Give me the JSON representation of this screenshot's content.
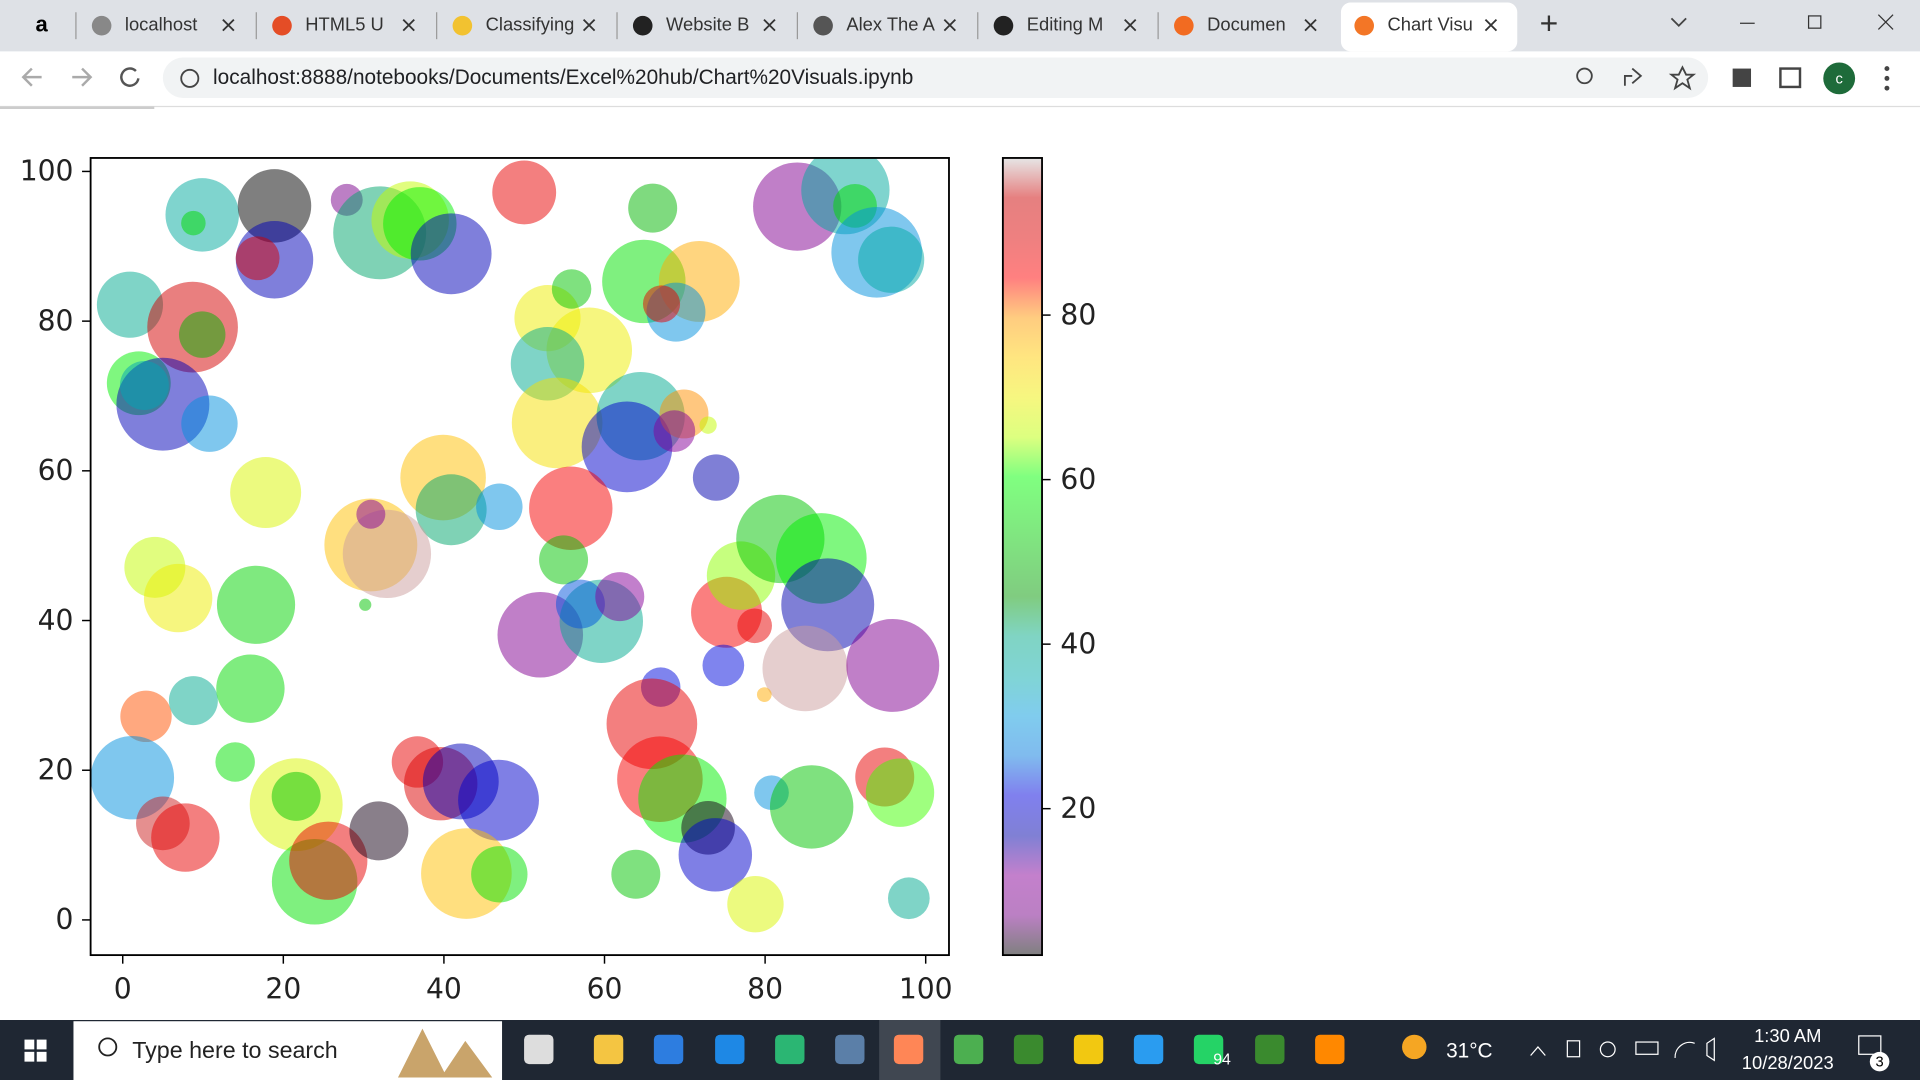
{
  "browser": {
    "tabs": [
      {
        "title": "localhost"
      },
      {
        "title": "HTML5 U"
      },
      {
        "title": "Classifying"
      },
      {
        "title": "Website B"
      },
      {
        "title": "Alex The A"
      },
      {
        "title": "Editing M"
      },
      {
        "title": "Documen"
      },
      {
        "title": "Chart Visu"
      }
    ],
    "url": "localhost:8888/notebooks/Documents/Excel%20hub/Chart%20Visuals.ipynb"
  },
  "chart_data": {
    "type": "scatter",
    "x": [
      9.9,
      18.9,
      18.9,
      16.8,
      8.8,
      27.9,
      32,
      35.8,
      37,
      40.9,
      50,
      66,
      84,
      90,
      91.2,
      93.9,
      95.7,
      0.9,
      8.7,
      9.9,
      2,
      5,
      2.7,
      10.8,
      52.9,
      55.9,
      58.1,
      52.9,
      64.9,
      71.8,
      68.9,
      67.1,
      54.1,
      64.5,
      62.8,
      69.9,
      68.7,
      72.9,
      73.9,
      17.8,
      39.9,
      40.9,
      46.9,
      55.8,
      54.9,
      30.9,
      32.9,
      30.9,
      30.2,
      4,
      6.9,
      16.6,
      52,
      59.6,
      57,
      61.9,
      75.2,
      77,
      81.9,
      87,
      87.8,
      78.7,
      74.8,
      67,
      85,
      95.9,
      79.9,
      2.9,
      8.8,
      15.9,
      65.9,
      1.2,
      5,
      7.8,
      14,
      21.6,
      21.6,
      23.9,
      25.6,
      31.9,
      36.7,
      39.6,
      42.1,
      46.8,
      42.8,
      46.9,
      66.9,
      69.7,
      72.9,
      73.8,
      63.9,
      78.8,
      80.8,
      85.8,
      94.9,
      96.8,
      97.9
    ],
    "y": [
      94.2,
      95.4,
      88.2,
      88.4,
      93.1,
      96.2,
      91.8,
      93.5,
      93,
      89,
      97.2,
      95.1,
      95.3,
      97.5,
      95.4,
      89.2,
      88.2,
      82.2,
      79.2,
      78.2,
      71.7,
      68.9,
      71.4,
      66.3,
      80.4,
      84.3,
      76.1,
      74.3,
      85.3,
      85.3,
      81.2,
      82.3,
      66.4,
      67.3,
      63.2,
      67.6,
      65.3,
      66.1,
      59.1,
      57.1,
      59.1,
      54.8,
      55.2,
      55,
      48.1,
      50.1,
      48.9,
      54.2,
      42.1,
      47.1,
      43,
      42.1,
      38.1,
      39.9,
      42.2,
      43.2,
      41.1,
      46,
      50.9,
      48.3,
      42.1,
      39.3,
      34,
      31.1,
      33.6,
      34,
      30.1,
      27.2,
      29.3,
      30.9,
      26.2,
      19,
      12.9,
      11,
      21.1,
      15.4,
      16.5,
      5.1,
      7.9,
      11.9,
      21.1,
      18.2,
      18.5,
      16,
      6.2,
      6.1,
      18.8,
      16.2,
      12.3,
      8.7,
      6.1,
      2.1,
      17,
      15.1,
      19.1,
      17,
      2.9
    ],
    "sizes": [
      900,
      900,
      1000,
      320,
      100,
      170,
      1440,
      1000,
      900,
      1090,
      680,
      400,
      1300,
      1300,
      320,
      1370,
      730,
      730,
      1370,
      360,
      680,
      1440,
      400,
      530,
      730,
      260,
      1220,
      900,
      1160,
      1090,
      580,
      230,
      1370,
      1300,
      1370,
      400,
      290,
      50,
      360,
      840,
      1220,
      840,
      360,
      1160,
      400,
      1440,
      1300,
      140,
      25,
      620,
      780,
      1020,
      1220,
      1160,
      400,
      400,
      840,
      780,
      1300,
      1370,
      1440,
      200,
      290,
      260,
      1220,
      1440,
      36,
      440,
      400,
      780,
      1370,
      1160,
      480,
      780,
      260,
      1440,
      400,
      1220,
      1020,
      580,
      440,
      900,
      960,
      1090,
      1370,
      530,
      1220,
      1300,
      480,
      900,
      400,
      530,
      200,
      1160,
      580,
      780,
      290
    ],
    "c": [
      38,
      2,
      18,
      92,
      55,
      8,
      42,
      66,
      58,
      18,
      88,
      50,
      10,
      38,
      55,
      30,
      37,
      40,
      92,
      50,
      58,
      18,
      35,
      30,
      70,
      52,
      70,
      40,
      56,
      78,
      30,
      88,
      72,
      40,
      20,
      80,
      12,
      66,
      17,
      68,
      76,
      42,
      30,
      86,
      52,
      76,
      98,
      12,
      52,
      66,
      70,
      54,
      10,
      40,
      25,
      12,
      86,
      64,
      52,
      58,
      17,
      88,
      22,
      22,
      98,
      10,
      78,
      82,
      40,
      55,
      88,
      30,
      95,
      88,
      56,
      68,
      52,
      56,
      88,
      3,
      88,
      90,
      18,
      20,
      76,
      56,
      86,
      58,
      3,
      20,
      52,
      68,
      30,
      52,
      88,
      62,
      40
    ],
    "xlim": [
      -4,
      102.9
    ],
    "ylim": [
      -4.7,
      101.8
    ],
    "xticks": [
      0,
      20,
      40,
      60,
      80,
      100
    ],
    "yticks": [
      0,
      20,
      40,
      60,
      80,
      100
    ],
    "colormap": [
      "#000000",
      "#770088",
      "#880099",
      "#0000aa",
      "#0000dd",
      "#0077dd",
      "#0099dd",
      "#00aaaa",
      "#00aa88",
      "#009900",
      "#00bb00",
      "#00dd00",
      "#00ff00",
      "#bbff00",
      "#eeee00",
      "#ffcc00",
      "#ff9900",
      "#ff0000",
      "#dd0000",
      "#cc0000",
      "#cccccc"
    ],
    "alpha": 0.5,
    "colorbar": {
      "clim": [
        2.2,
        99.1
      ],
      "ticks": [
        20,
        40,
        60,
        80
      ]
    }
  },
  "taskbar": {
    "search": "Type here to search",
    "weather": "31°C",
    "time": "1:30 AM",
    "date": "10/28/2023",
    "whatsapp_badge": "94",
    "notifications": "3"
  }
}
